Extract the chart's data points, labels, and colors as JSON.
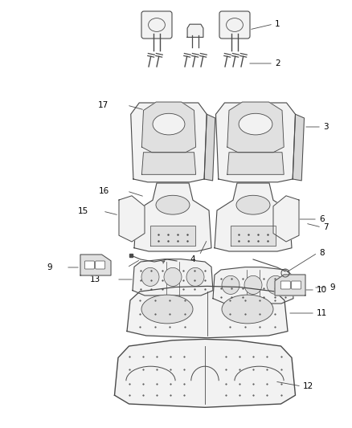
{
  "bg_color": "#ffffff",
  "line_color": "#4a4a4a",
  "fill_color": "#f2f2f2",
  "fill_dark": "#e0e0e0",
  "label_color": "#000000",
  "figsize": [
    4.38,
    5.33
  ],
  "dpi": 100,
  "label_fontsize": 7.5
}
